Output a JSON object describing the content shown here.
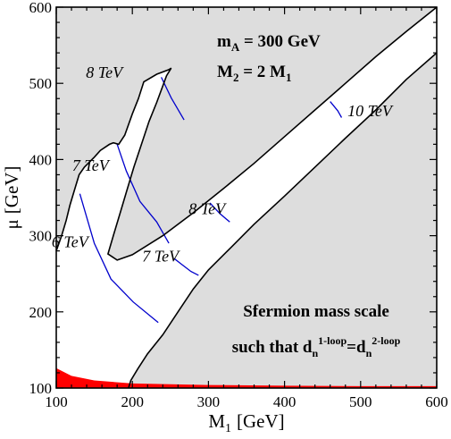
{
  "chart_data": {
    "type": "area",
    "xlabel": "M",
    "xlabel_sub": "1",
    "xlabel_unit": "[GeV]",
    "ylabel": "μ",
    "ylabel_unit": "[GeV]",
    "xlim": [
      100,
      600
    ],
    "ylim": [
      100,
      600
    ],
    "xticks": [
      100,
      200,
      300,
      400,
      500,
      600
    ],
    "yticks": [
      100,
      200,
      300,
      400,
      500,
      600
    ],
    "grid": false,
    "colors": {
      "excluded_region": "#dddddd",
      "allowed_region": "#ffffff",
      "contour_lines": "#0000cc",
      "boundary": "#000000",
      "lower_band": "#ff0000"
    },
    "annotations": {
      "param_ma_main": "m",
      "param_ma_sub": "A",
      "param_ma_value": " = 300 GeV",
      "param_m2_main": "M",
      "param_m2_sub": "2",
      "param_m2_mid": " = 2 M",
      "param_m2_sub2": "1",
      "caption_line1": "Sfermion mass scale",
      "caption_line2_a": "such that d",
      "caption_line2_sub1": "n",
      "caption_line2_sup1": "1-loop",
      "caption_line2_b": "=d",
      "caption_line2_sub2": "n",
      "caption_line2_sup2": "2-loop"
    },
    "regions": {
      "outer_boundary_upper": [
        [
          100,
          280
        ],
        [
          107,
          300
        ],
        [
          113,
          320
        ],
        [
          118,
          340
        ],
        [
          124,
          360
        ],
        [
          130,
          380
        ],
        [
          137,
          390
        ],
        [
          150,
          403
        ],
        [
          158,
          412
        ],
        [
          170,
          420
        ],
        [
          175,
          422
        ],
        [
          182,
          420
        ],
        [
          190,
          432
        ],
        [
          200,
          460
        ],
        [
          208,
          480
        ],
        [
          215,
          502
        ],
        [
          232,
          512
        ],
        [
          248,
          518
        ],
        [
          251,
          520
        ],
        [
          245,
          510
        ],
        [
          232,
          475
        ],
        [
          222,
          450
        ],
        [
          212,
          420
        ],
        [
          202,
          390
        ],
        [
          193,
          360
        ],
        [
          184,
          330
        ],
        [
          175,
          300
        ],
        [
          168,
          276
        ],
        [
          180,
          268
        ],
        [
          200,
          275
        ],
        [
          240,
          300
        ],
        [
          280,
          330
        ],
        [
          320,
          362
        ],
        [
          360,
          395
        ],
        [
          400,
          430
        ],
        [
          440,
          465
        ],
        [
          480,
          500
        ],
        [
          520,
          535
        ],
        [
          560,
          568
        ],
        [
          600,
          600
        ]
      ],
      "outer_boundary_lower": [
        [
          195,
          100
        ],
        [
          198,
          110
        ],
        [
          207,
          125
        ],
        [
          220,
          145
        ],
        [
          240,
          170
        ],
        [
          260,
          200
        ],
        [
          280,
          230
        ],
        [
          300,
          255
        ],
        [
          330,
          285
        ],
        [
          360,
          315
        ],
        [
          400,
          352
        ],
        [
          440,
          390
        ],
        [
          480,
          428
        ],
        [
          520,
          465
        ],
        [
          560,
          505
        ],
        [
          600,
          540
        ]
      ],
      "lower_band": [
        [
          100,
          100
        ],
        [
          100,
          126
        ],
        [
          120,
          116
        ],
        [
          150,
          110
        ],
        [
          200,
          106
        ],
        [
          300,
          104
        ],
        [
          400,
          103
        ],
        [
          500,
          102.5
        ],
        [
          600,
          102.5
        ],
        [
          600,
          100
        ]
      ]
    },
    "contours": [
      {
        "label": "6 TeV",
        "label_pos": [
          118,
          285
        ],
        "points": [
          [
            131,
            355
          ],
          [
            150,
            290
          ],
          [
            172,
            243
          ],
          [
            201,
            213
          ],
          [
            234,
            186
          ]
        ]
      },
      {
        "label": "7 TeV",
        "label_pos": [
          145,
          385
        ],
        "points": [
          [
            180,
            420
          ],
          [
            192,
            385
          ],
          [
            210,
            345
          ],
          [
            232,
            318
          ],
          [
            248,
            290
          ]
        ]
      },
      {
        "label": "7 TeV",
        "label_pos": [
          237,
          266
        ],
        "points": [
          [
            255,
            270
          ],
          [
            264,
            263
          ],
          [
            277,
            253
          ],
          [
            287,
            248
          ]
        ]
      },
      {
        "label": "8 TeV",
        "label_pos": [
          163,
          507
        ],
        "points": [
          [
            238,
            508
          ],
          [
            251,
            481
          ],
          [
            268,
            452
          ]
        ]
      },
      {
        "label": "8 TeV",
        "label_pos": [
          298,
          328
        ],
        "points": [
          [
            302,
            343
          ],
          [
            315,
            329
          ],
          [
            328,
            318
          ]
        ]
      },
      {
        "label": "10 TeV",
        "label_pos": [
          512,
          457
        ],
        "points": [
          [
            460,
            476
          ],
          [
            470,
            464
          ],
          [
            475,
            455
          ]
        ]
      }
    ]
  }
}
